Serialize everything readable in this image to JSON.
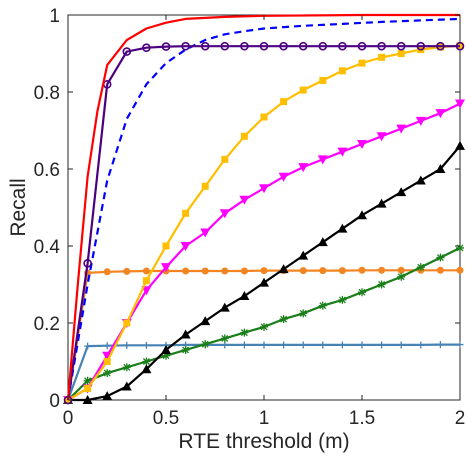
{
  "chart_data": {
    "type": "line",
    "title": "",
    "xlabel": "RTE threshold (m)",
    "ylabel": "Recall",
    "xlim": [
      0,
      2
    ],
    "ylim": [
      0,
      1
    ],
    "xticks": [
      0,
      0.5,
      1,
      1.5,
      2
    ],
    "xtick_labels": [
      "0",
      "0.5",
      "1",
      "1.5",
      "2"
    ],
    "yticks": [
      0,
      0.2,
      0.4,
      0.6,
      0.8,
      1
    ],
    "ytick_labels": [
      "0",
      "0.2",
      "0.4",
      "0.6",
      "0.8",
      "1"
    ],
    "grid": false,
    "series": [
      {
        "color": "#ff0000",
        "linestyle": "solid",
        "marker": "none",
        "x": [
          0,
          0.05,
          0.1,
          0.15,
          0.2,
          0.3,
          0.4,
          0.5,
          0.6,
          0.8,
          1.0,
          1.5,
          2.0
        ],
        "y": [
          0,
          0.3,
          0.58,
          0.75,
          0.87,
          0.935,
          0.965,
          0.98,
          0.99,
          0.995,
          0.998,
          1.0,
          1.0
        ]
      },
      {
        "color": "#4b0082",
        "linestyle": "solid",
        "marker": "circle",
        "x": [
          0,
          0.1,
          0.2,
          0.3,
          0.4,
          0.5,
          0.6,
          0.7,
          0.8,
          0.9,
          1.0,
          1.1,
          1.2,
          1.3,
          1.4,
          1.5,
          1.6,
          1.7,
          1.8,
          1.9,
          2.0
        ],
        "y": [
          0,
          0.355,
          0.82,
          0.905,
          0.915,
          0.918,
          0.919,
          0.919,
          0.919,
          0.919,
          0.919,
          0.919,
          0.919,
          0.919,
          0.919,
          0.919,
          0.919,
          0.919,
          0.919,
          0.919,
          0.919
        ]
      },
      {
        "color": "#0000ff",
        "linestyle": "dashed",
        "marker": "none",
        "x": [
          0,
          0.1,
          0.2,
          0.3,
          0.4,
          0.5,
          0.6,
          0.7,
          0.8,
          0.9,
          1.0,
          1.2,
          1.4,
          1.6,
          1.8,
          2.0
        ],
        "y": [
          0,
          0.3,
          0.57,
          0.73,
          0.82,
          0.875,
          0.91,
          0.935,
          0.95,
          0.958,
          0.965,
          0.972,
          0.977,
          0.982,
          0.986,
          0.99
        ]
      },
      {
        "color": "#ffbf00",
        "linestyle": "solid",
        "marker": "square",
        "x": [
          0,
          0.1,
          0.2,
          0.3,
          0.4,
          0.5,
          0.6,
          0.7,
          0.8,
          0.9,
          1.0,
          1.1,
          1.2,
          1.3,
          1.4,
          1.5,
          1.6,
          1.7,
          1.8,
          1.9,
          2.0
        ],
        "y": [
          0,
          0.03,
          0.1,
          0.2,
          0.31,
          0.4,
          0.485,
          0.555,
          0.625,
          0.685,
          0.735,
          0.775,
          0.805,
          0.83,
          0.855,
          0.875,
          0.89,
          0.9,
          0.91,
          0.917,
          0.92
        ]
      },
      {
        "color": "#ff00ff",
        "linestyle": "solid",
        "marker": "triangle-down",
        "x": [
          0,
          0.1,
          0.2,
          0.3,
          0.4,
          0.5,
          0.6,
          0.7,
          0.8,
          0.9,
          1.0,
          1.1,
          1.2,
          1.3,
          1.4,
          1.5,
          1.6,
          1.7,
          1.8,
          1.9,
          2.0
        ],
        "y": [
          0,
          0.03,
          0.115,
          0.2,
          0.285,
          0.345,
          0.4,
          0.435,
          0.485,
          0.52,
          0.55,
          0.58,
          0.605,
          0.625,
          0.645,
          0.665,
          0.685,
          0.705,
          0.725,
          0.745,
          0.77
        ]
      },
      {
        "color": "#000000",
        "linestyle": "solid",
        "marker": "triangle-up",
        "x": [
          0,
          0.1,
          0.2,
          0.3,
          0.4,
          0.5,
          0.6,
          0.7,
          0.8,
          0.9,
          1.0,
          1.1,
          1.2,
          1.3,
          1.4,
          1.5,
          1.6,
          1.7,
          1.8,
          1.9,
          2.0
        ],
        "y": [
          0,
          0.0,
          0.01,
          0.035,
          0.08,
          0.13,
          0.17,
          0.205,
          0.24,
          0.27,
          0.305,
          0.34,
          0.375,
          0.41,
          0.445,
          0.48,
          0.51,
          0.54,
          0.57,
          0.6,
          0.66
        ]
      },
      {
        "color": "#1a7f1a",
        "linestyle": "solid",
        "marker": "star",
        "x": [
          0,
          0.1,
          0.2,
          0.3,
          0.4,
          0.5,
          0.6,
          0.7,
          0.8,
          0.9,
          1.0,
          1.1,
          1.2,
          1.3,
          1.4,
          1.5,
          1.6,
          1.7,
          1.8,
          1.9,
          2.0
        ],
        "y": [
          0,
          0.05,
          0.07,
          0.085,
          0.1,
          0.115,
          0.13,
          0.145,
          0.16,
          0.175,
          0.19,
          0.21,
          0.225,
          0.245,
          0.26,
          0.28,
          0.3,
          0.32,
          0.345,
          0.37,
          0.395
        ]
      },
      {
        "color": "#f28522",
        "linestyle": "solid",
        "marker": "circle-filled",
        "x": [
          0,
          0.1,
          0.2,
          0.3,
          0.4,
          0.5,
          0.6,
          0.7,
          0.8,
          0.9,
          1.0,
          1.1,
          1.2,
          1.3,
          1.4,
          1.5,
          1.6,
          1.7,
          1.8,
          1.9,
          2.0
        ],
        "y": [
          0,
          0.33,
          0.333,
          0.334,
          0.335,
          0.335,
          0.335,
          0.335,
          0.335,
          0.335,
          0.336,
          0.336,
          0.336,
          0.336,
          0.336,
          0.337,
          0.337,
          0.337,
          0.337,
          0.337,
          0.337
        ]
      },
      {
        "color": "#4682b4",
        "linestyle": "solid",
        "marker": "plus",
        "x": [
          0,
          0.1,
          0.2,
          0.3,
          0.4,
          0.5,
          0.6,
          0.7,
          0.8,
          0.9,
          1.0,
          1.1,
          1.2,
          1.3,
          1.4,
          1.5,
          1.6,
          1.7,
          1.8,
          1.9,
          2.0
        ],
        "y": [
          0,
          0.14,
          0.141,
          0.142,
          0.142,
          0.142,
          0.143,
          0.143,
          0.143,
          0.143,
          0.143,
          0.143,
          0.143,
          0.143,
          0.143,
          0.143,
          0.143,
          0.143,
          0.143,
          0.144,
          0.144
        ]
      }
    ]
  }
}
